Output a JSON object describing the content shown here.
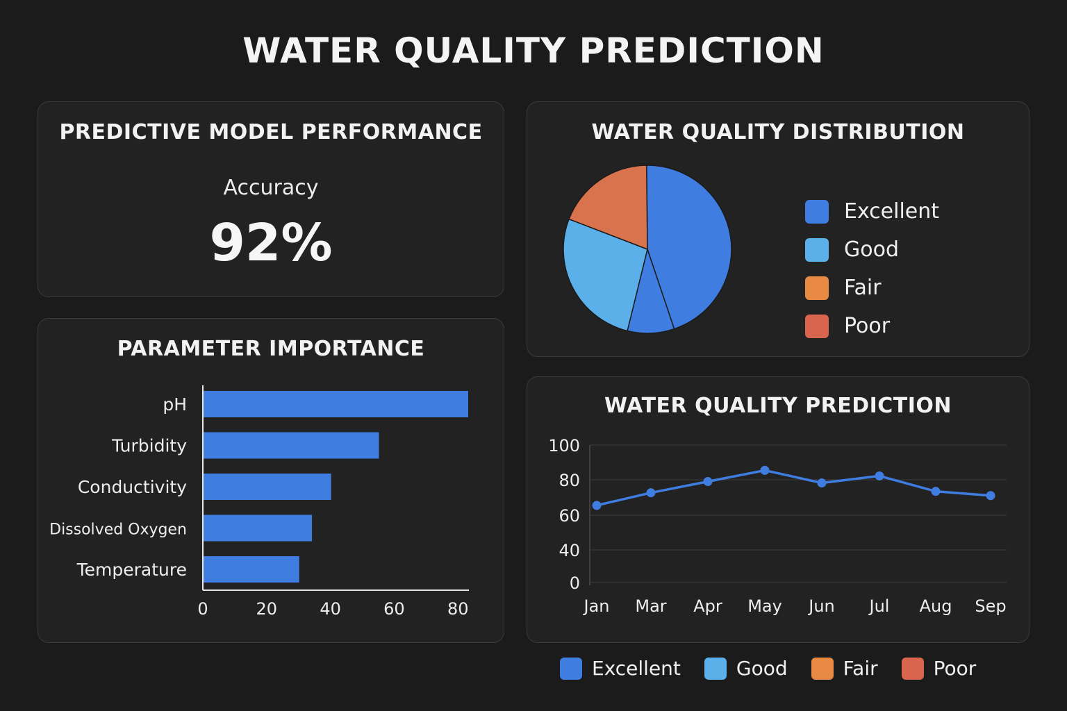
{
  "title": "WATER QUALITY PREDICTION",
  "performance": {
    "title": "PREDICTIVE MODEL PERFORMANCE",
    "metric_label": "Accuracy",
    "metric_value": "92%"
  },
  "legend": [
    {
      "label": "Excellent",
      "color": "#3f7de0"
    },
    {
      "label": "Good",
      "color": "#5cb0ea"
    },
    {
      "label": "Fair",
      "color": "#e88a44"
    },
    {
      "label": "Poor",
      "color": "#d9654e"
    }
  ],
  "chart_data": [
    {
      "type": "pie",
      "title": "WATER QUALITY DISTRIBUTION",
      "slices": [
        {
          "value": 45,
          "color": "#3f7de0"
        },
        {
          "value": 9,
          "color": "#3f7de0"
        },
        {
          "value": 27,
          "color": "#5cb0ea"
        },
        {
          "value": 19,
          "color": "#d9734e"
        }
      ],
      "legend": [
        "Excellent",
        "Good",
        "Fair",
        "Poor"
      ],
      "legend_placement": "right"
    },
    {
      "type": "bar",
      "orientation": "horizontal",
      "title": "PARAMETER IMPORTANCE",
      "categories": [
        "pH",
        "Turbidity",
        "Conductivity",
        "Dissolved Oxygen",
        "Temperature"
      ],
      "values": [
        83,
        55,
        40,
        34,
        30
      ],
      "xlim": [
        0,
        83
      ],
      "xticks": [
        "0",
        "20",
        "40",
        "60",
        "80"
      ],
      "color": "#3f7de0"
    },
    {
      "type": "line",
      "title": "WATER QUALITY PREDICTION",
      "x": [
        "Jan",
        "Mar",
        "Apr",
        "May",
        "Jun",
        "Jul",
        "Aug",
        "Sep"
      ],
      "values": [
        57,
        66,
        74,
        82,
        73,
        78,
        67,
        64
      ],
      "ylim": [
        0,
        100
      ],
      "yticks": [
        "0",
        "40",
        "60",
        "80",
        "100"
      ],
      "grid": true,
      "color": "#3f7de0"
    }
  ]
}
